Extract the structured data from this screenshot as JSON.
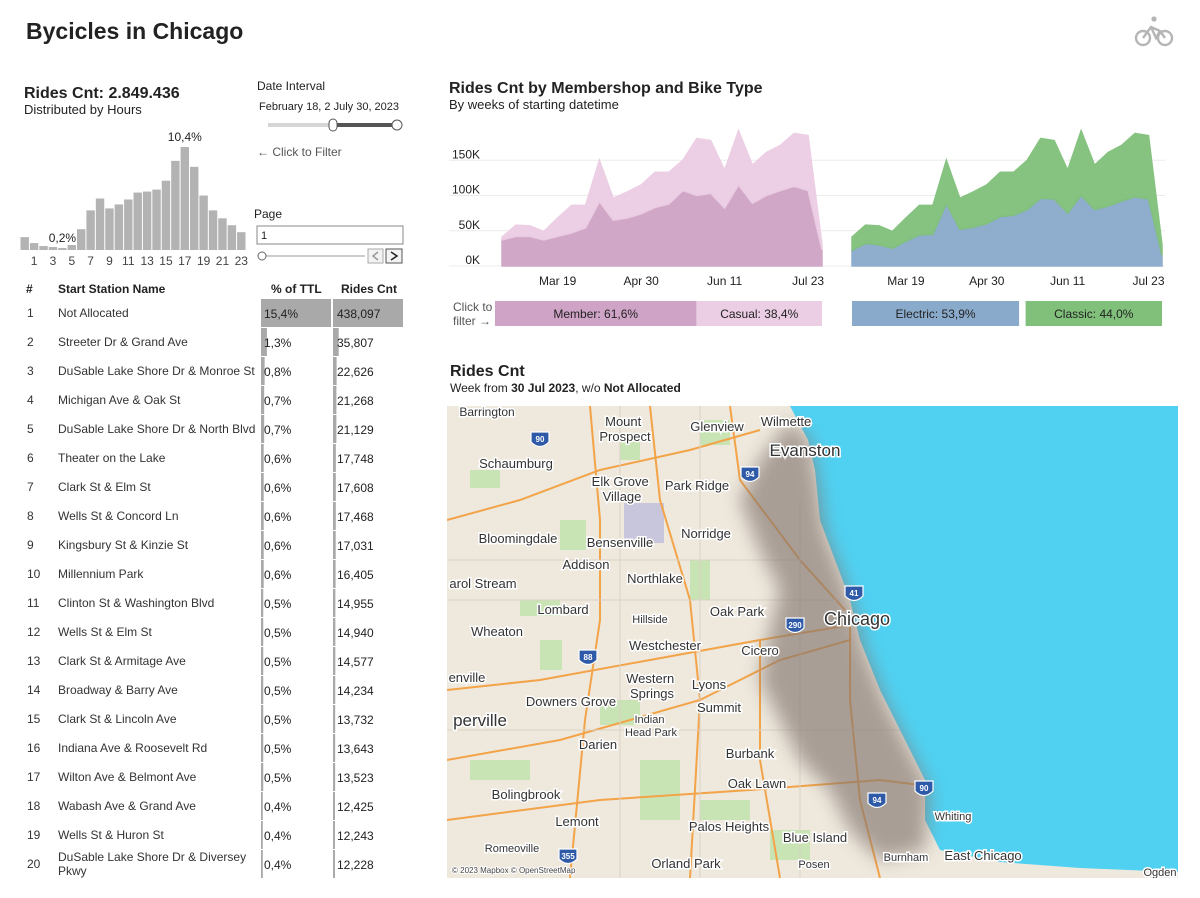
{
  "header": {
    "title": "Bycicles in Chicago"
  },
  "filters": {
    "date_label": "Date Interval",
    "date_value": "February 18, 2 July 30, 2023",
    "hint": "← Click to Filter",
    "page_label": "Page",
    "page_value": "1"
  },
  "chart_data": [
    {
      "type": "bar",
      "title": "Rides Cnt: 2.849.436",
      "subtitle": "Distributed by Hours",
      "color": "#b3b3b3",
      "categories": [
        null,
        "1",
        null,
        "3",
        null,
        "5",
        null,
        "7",
        null,
        "9",
        null,
        "11",
        null,
        "13",
        null,
        "15",
        null,
        "17",
        null,
        "19",
        null,
        "21",
        null,
        "23"
      ],
      "values": [
        1.3,
        0.7,
        0.4,
        0.3,
        0.2,
        0.5,
        2.1,
        4.0,
        5.2,
        4.2,
        4.6,
        5.1,
        5.8,
        5.9,
        6.1,
        7.0,
        9.0,
        10.4,
        8.4,
        5.5,
        4.0,
        3.2,
        2.5,
        1.8
      ],
      "value_labels": [
        null,
        null,
        null,
        null,
        "0,2%",
        null,
        null,
        null,
        null,
        null,
        null,
        null,
        null,
        null,
        null,
        null,
        null,
        "10,4%",
        null,
        null,
        null,
        null,
        null,
        null
      ]
    },
    {
      "type": "area",
      "title": "Rides Cnt by Membershop and Bike Type",
      "subtitle": "By weeks of starting datetime",
      "filter_hint": "Click to filter →",
      "categories": [
        null,
        null,
        null,
        null,
        "Mar 19",
        null,
        null,
        null,
        null,
        null,
        "Apr 30",
        null,
        null,
        null,
        null,
        null,
        "Jun 11",
        null,
        null,
        null,
        null,
        null,
        "Jul 23",
        null
      ],
      "ylim": [
        0,
        200000
      ],
      "yticks": [
        {
          "value": 150000,
          "label": "150K"
        },
        {
          "value": 100000,
          "label": "100K"
        },
        {
          "value": 50000,
          "label": "50K"
        },
        {
          "value": 0,
          "label": "0K"
        }
      ],
      "grid": true,
      "panels": [
        {
          "series": [
            {
              "label": "Member: 61,6%",
              "share": 61.6,
              "color": "#cfa3c6",
              "values": [
                37000,
                42000,
                42000,
                37000,
                42000,
                47000,
                54000,
                91000,
                65000,
                68000,
                74000,
                83000,
                88000,
                107000,
                100000,
                103000,
                82000,
                115000,
                89000,
                100000,
                107000,
                113000,
                107000,
                23000
              ]
            },
            {
              "label": "Casual: 38,4%",
              "share": 38.4,
              "color": "#ebcde4",
              "values": [
                4000,
                16000,
                15000,
                12000,
                26000,
                39000,
                32000,
                59000,
                31000,
                37000,
                41000,
                50000,
                45000,
                43000,
                81000,
                75000,
                54000,
                77000,
                54000,
                61000,
                64000,
                75000,
                78000,
                7000
              ]
            }
          ]
        },
        {
          "series": [
            {
              "label": "Electric: 53,9%",
              "share": 53.9,
              "color": "#8aaacb",
              "values": [
                22000,
                32000,
                30000,
                25000,
                35000,
                44000,
                45000,
                88000,
                52000,
                55000,
                60000,
                70000,
                72000,
                80000,
                96000,
                95000,
                75000,
                100000,
                80000,
                85000,
                92000,
                98000,
                95000,
                15000
              ]
            },
            {
              "label": "Classic: 44,0%",
              "share": 44.0,
              "color": "#80c07b",
              "values": [
                19000,
                26000,
                27000,
                24000,
                33000,
                42000,
                41000,
                62000,
                44000,
                50000,
                55000,
                63000,
                61000,
                70000,
                85000,
                83000,
                61000,
                92000,
                63000,
                76000,
                79000,
                90000,
                90000,
                15000
              ]
            }
          ]
        }
      ]
    }
  ],
  "table": {
    "columns": [
      "#",
      "Start Station Name",
      "% of TTL",
      "Rides Cnt"
    ],
    "rows": [
      {
        "rank": 1,
        "name": "Not Allocated",
        "pct": 15.4,
        "pct_label": "15,4%",
        "rides": 438097,
        "rides_label": "438,097"
      },
      {
        "rank": 2,
        "name": "Streeter Dr & Grand Ave",
        "pct": 1.3,
        "pct_label": "1,3%",
        "rides": 35807,
        "rides_label": "35,807"
      },
      {
        "rank": 3,
        "name": "DuSable Lake Shore Dr & Monroe St",
        "pct": 0.8,
        "pct_label": "0,8%",
        "rides": 22626,
        "rides_label": "22,626"
      },
      {
        "rank": 4,
        "name": "Michigan Ave & Oak St",
        "pct": 0.7,
        "pct_label": "0,7%",
        "rides": 21268,
        "rides_label": "21,268"
      },
      {
        "rank": 5,
        "name": "DuSable Lake Shore Dr & North Blvd",
        "pct": 0.7,
        "pct_label": "0,7%",
        "rides": 21129,
        "rides_label": "21,129"
      },
      {
        "rank": 6,
        "name": "Theater on the Lake",
        "pct": 0.6,
        "pct_label": "0,6%",
        "rides": 17748,
        "rides_label": "17,748"
      },
      {
        "rank": 7,
        "name": "Clark St & Elm St",
        "pct": 0.6,
        "pct_label": "0,6%",
        "rides": 17608,
        "rides_label": "17,608"
      },
      {
        "rank": 8,
        "name": "Wells St & Concord Ln",
        "pct": 0.6,
        "pct_label": "0,6%",
        "rides": 17468,
        "rides_label": "17,468"
      },
      {
        "rank": 9,
        "name": "Kingsbury St & Kinzie St",
        "pct": 0.6,
        "pct_label": "0,6%",
        "rides": 17031,
        "rides_label": "17,031"
      },
      {
        "rank": 10,
        "name": "Millennium Park",
        "pct": 0.6,
        "pct_label": "0,6%",
        "rides": 16405,
        "rides_label": "16,405"
      },
      {
        "rank": 11,
        "name": "Clinton St & Washington Blvd",
        "pct": 0.5,
        "pct_label": "0,5%",
        "rides": 14955,
        "rides_label": "14,955"
      },
      {
        "rank": 12,
        "name": "Wells St & Elm St",
        "pct": 0.5,
        "pct_label": "0,5%",
        "rides": 14940,
        "rides_label": "14,940"
      },
      {
        "rank": 13,
        "name": "Clark St & Armitage Ave",
        "pct": 0.5,
        "pct_label": "0,5%",
        "rides": 14577,
        "rides_label": "14,577"
      },
      {
        "rank": 14,
        "name": "Broadway & Barry Ave",
        "pct": 0.5,
        "pct_label": "0,5%",
        "rides": 14234,
        "rides_label": "14,234"
      },
      {
        "rank": 15,
        "name": "Clark St & Lincoln Ave",
        "pct": 0.5,
        "pct_label": "0,5%",
        "rides": 13732,
        "rides_label": "13,732"
      },
      {
        "rank": 16,
        "name": "Indiana Ave & Roosevelt Rd",
        "pct": 0.5,
        "pct_label": "0,5%",
        "rides": 13643,
        "rides_label": "13,643"
      },
      {
        "rank": 17,
        "name": "Wilton Ave & Belmont Ave",
        "pct": 0.5,
        "pct_label": "0,5%",
        "rides": 13523,
        "rides_label": "13,523"
      },
      {
        "rank": 18,
        "name": "Wabash Ave & Grand Ave",
        "pct": 0.4,
        "pct_label": "0,4%",
        "rides": 12425,
        "rides_label": "12,425"
      },
      {
        "rank": 19,
        "name": "Wells St & Huron St",
        "pct": 0.4,
        "pct_label": "0,4%",
        "rides": 12243,
        "rides_label": "12,243"
      },
      {
        "rank": 20,
        "name": "DuSable Lake Shore Dr & Diversey Pkwy",
        "pct": 0.4,
        "pct_label": "0,4%",
        "rides": 12228,
        "rides_label": "12,228"
      }
    ]
  },
  "map": {
    "title": "Rides Cnt",
    "subtitle_parts": [
      "Week from ",
      "30 Jul 2023",
      ", w/o ",
      "Not Allocated"
    ],
    "places": [
      "Barrington",
      "Mount Prospect",
      "Glenview",
      "Wilmette",
      "Evanston",
      "Schaumburg",
      "Elk Grove Village",
      "Park Ridge",
      "Bloomingdale",
      "Bensenville",
      "Norridge",
      "Addison",
      "Northlake",
      "arol Stream",
      "Lombard",
      "Oak Park",
      "Chicago",
      "Wheaton",
      "Hillside",
      "Westchester",
      "Cicero",
      "enville",
      "Western Springs",
      "Lyons",
      "Downers Grove",
      "Summit",
      "perville",
      "Indian Head Park",
      "Darien",
      "Burbank",
      "Oak Lawn",
      "Bolingbrook",
      "Lemont",
      "Palos Heights",
      "Blue Island",
      "Whiting",
      "Romeoville",
      "Orland Park",
      "Posen",
      "Burnham",
      "East Chicago",
      "Ogden"
    ],
    "highways": [
      "90",
      "94",
      "41",
      "290",
      "88",
      "355",
      "94",
      "90"
    ],
    "attribution": "© 2023 Mapbox © OpenStreetMap"
  }
}
